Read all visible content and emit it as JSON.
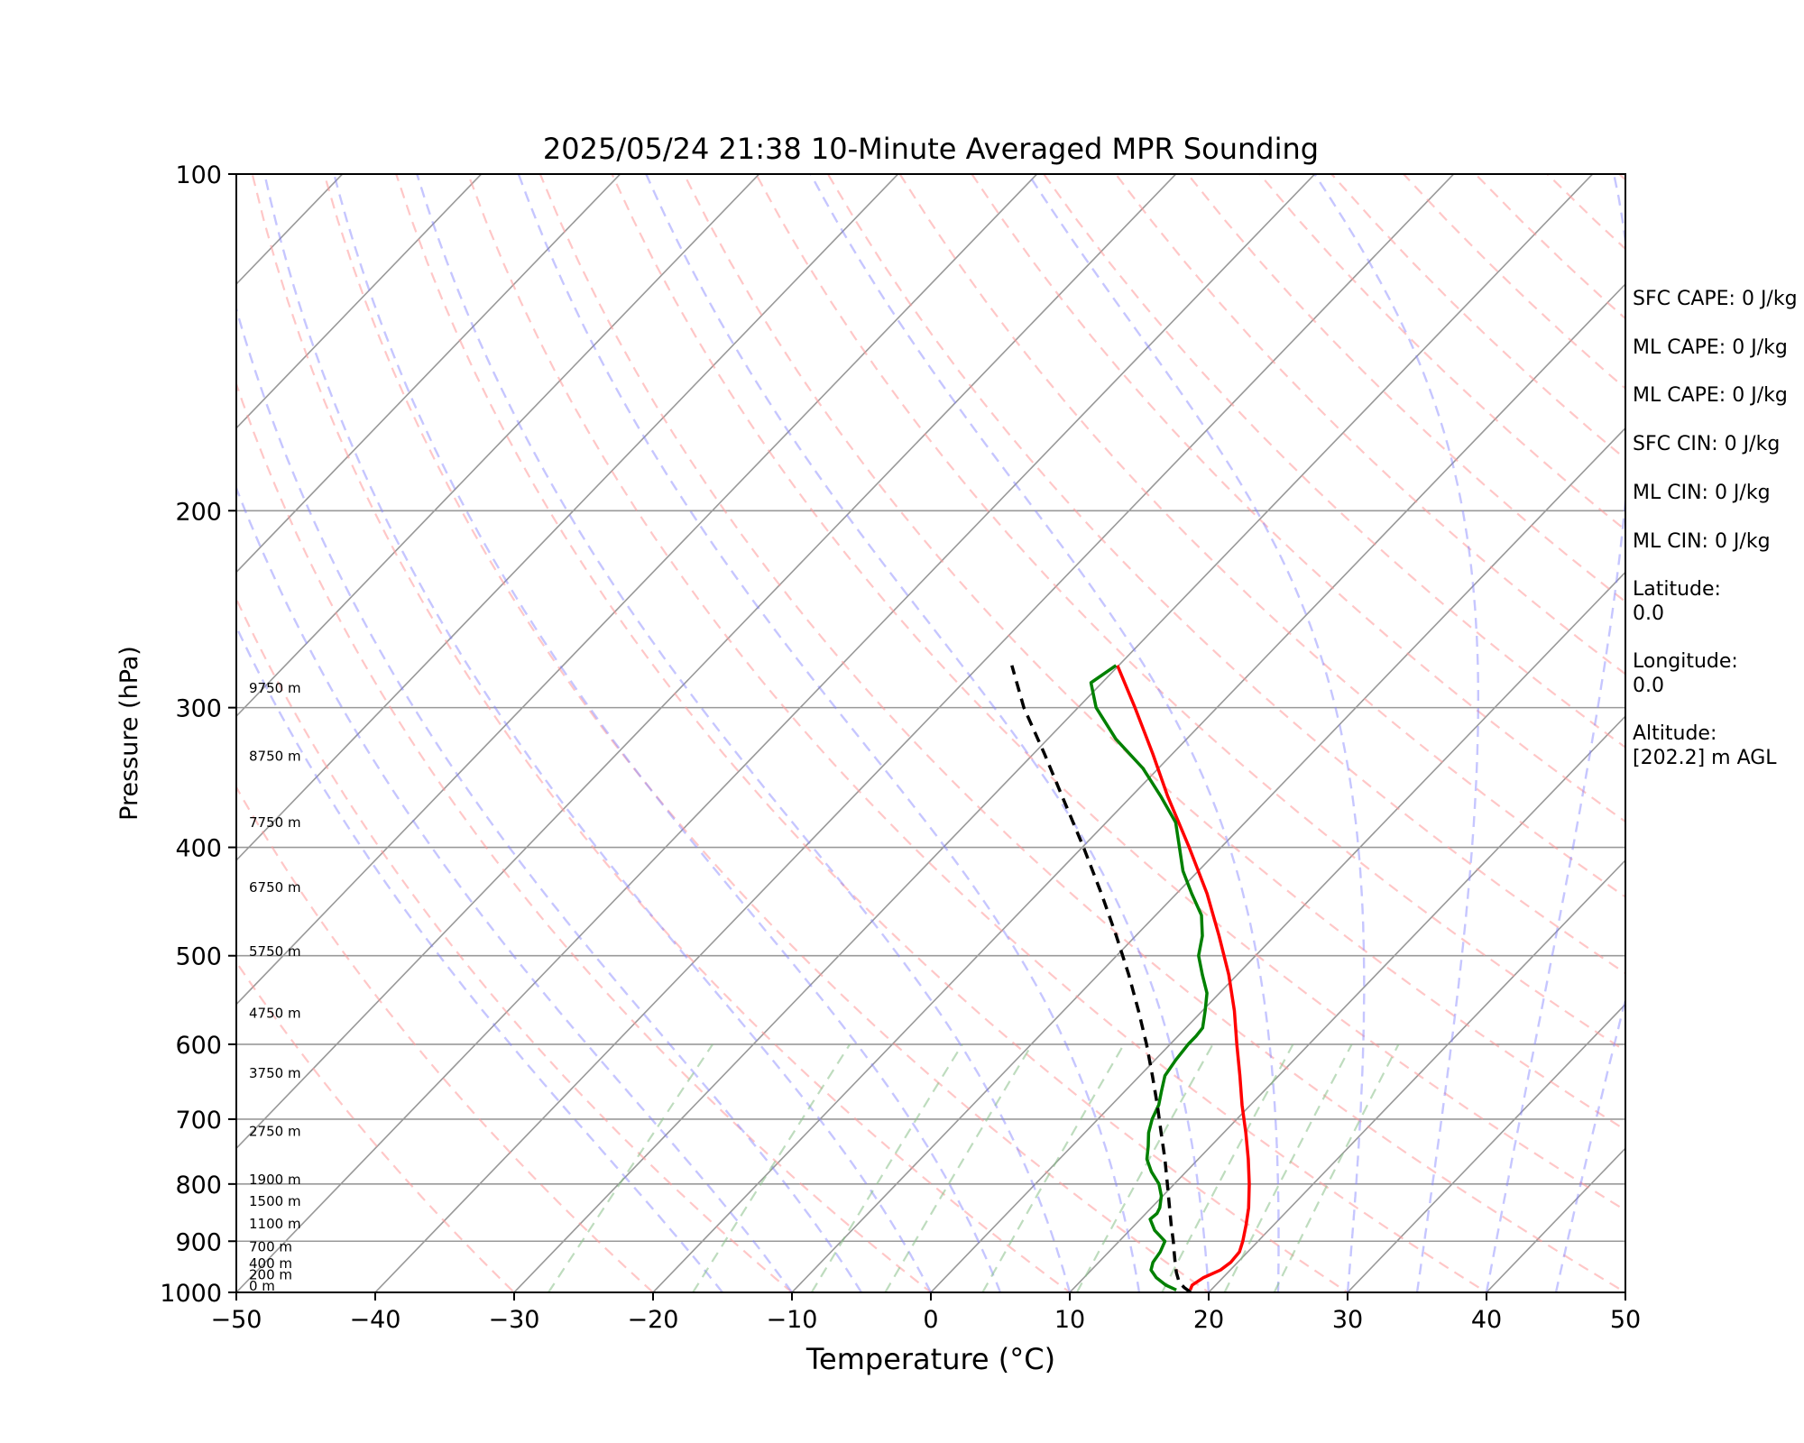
{
  "chart_data": {
    "type": "line",
    "title": "2025/05/24 21:38 10-Minute Averaged MPR Sounding",
    "xlabel": "Temperature (°C)",
    "ylabel": "Pressure (hPa)",
    "xlim": [
      -50,
      50
    ],
    "ylim": [
      1000,
      100
    ],
    "y_scale": "log",
    "skew": "skew-T (isotherms slanted)",
    "x_ticks": [
      "−50",
      "−40",
      "−30",
      "−20",
      "−10",
      "0",
      "10",
      "20",
      "30",
      "40",
      "50"
    ],
    "y_ticks": [
      100,
      200,
      300,
      400,
      500,
      600,
      700,
      800,
      900,
      1000
    ],
    "grid": true,
    "height_labels": [
      {
        "text": "0 m",
        "p": 1000
      },
      {
        "text": "200 m",
        "p": 977
      },
      {
        "text": "400 m",
        "p": 955
      },
      {
        "text": "700 m",
        "p": 922
      },
      {
        "text": "1100 m",
        "p": 880
      },
      {
        "text": "1500 m",
        "p": 840
      },
      {
        "text": "1900 m",
        "p": 803
      },
      {
        "text": "2750 m",
        "p": 727
      },
      {
        "text": "3750 m",
        "p": 645
      },
      {
        "text": "4750 m",
        "p": 570
      },
      {
        "text": "5750 m",
        "p": 502
      },
      {
        "text": "6750 m",
        "p": 440
      },
      {
        "text": "7750 m",
        "p": 385
      },
      {
        "text": "8750 m",
        "p": 336
      },
      {
        "text": "9750 m",
        "p": 292
      }
    ],
    "series": [
      {
        "role": "temperature",
        "color": "#ff0000",
        "points": [
          {
            "p": 995,
            "t": 18.5
          },
          {
            "p": 985,
            "t": 18.3
          },
          {
            "p": 970,
            "t": 18.6
          },
          {
            "p": 955,
            "t": 19.3
          },
          {
            "p": 940,
            "t": 19.5
          },
          {
            "p": 920,
            "t": 19.4
          },
          {
            "p": 900,
            "t": 18.9
          },
          {
            "p": 870,
            "t": 18.0
          },
          {
            "p": 840,
            "t": 17.0
          },
          {
            "p": 800,
            "t": 15.4
          },
          {
            "p": 760,
            "t": 13.6
          },
          {
            "p": 720,
            "t": 11.6
          },
          {
            "p": 680,
            "t": 9.4
          },
          {
            "p": 640,
            "t": 7.2
          },
          {
            "p": 600,
            "t": 4.8
          },
          {
            "p": 560,
            "t": 2.3
          },
          {
            "p": 520,
            "t": -0.6
          },
          {
            "p": 480,
            "t": -4.0
          },
          {
            "p": 440,
            "t": -7.8
          },
          {
            "p": 400,
            "t": -12.3
          },
          {
            "p": 360,
            "t": -17.4
          },
          {
            "p": 330,
            "t": -21.4
          },
          {
            "p": 300,
            "t": -25.9
          },
          {
            "p": 275,
            "t": -30.1
          }
        ]
      },
      {
        "role": "dewpoint",
        "color": "#008000",
        "points": [
          {
            "p": 995,
            "t": 17.5
          },
          {
            "p": 985,
            "t": 16.4
          },
          {
            "p": 970,
            "t": 15.2
          },
          {
            "p": 955,
            "t": 14.3
          },
          {
            "p": 940,
            "t": 13.9
          },
          {
            "p": 920,
            "t": 13.7
          },
          {
            "p": 900,
            "t": 13.3
          },
          {
            "p": 880,
            "t": 11.8
          },
          {
            "p": 860,
            "t": 10.7
          },
          {
            "p": 850,
            "t": 10.8
          },
          {
            "p": 840,
            "t": 10.6
          },
          {
            "p": 820,
            "t": 9.9
          },
          {
            "p": 800,
            "t": 8.9
          },
          {
            "p": 780,
            "t": 7.5
          },
          {
            "p": 760,
            "t": 6.3
          },
          {
            "p": 740,
            "t": 5.5
          },
          {
            "p": 720,
            "t": 4.6
          },
          {
            "p": 700,
            "t": 3.9
          },
          {
            "p": 680,
            "t": 3.4
          },
          {
            "p": 660,
            "t": 2.6
          },
          {
            "p": 640,
            "t": 1.8
          },
          {
            "p": 620,
            "t": 1.5
          },
          {
            "p": 600,
            "t": 1.3
          },
          {
            "p": 590,
            "t": 1.3
          },
          {
            "p": 580,
            "t": 1.2
          },
          {
            "p": 560,
            "t": 0.2
          },
          {
            "p": 540,
            "t": -0.9
          },
          {
            "p": 520,
            "t": -2.5
          },
          {
            "p": 500,
            "t": -4.1
          },
          {
            "p": 480,
            "t": -5.2
          },
          {
            "p": 460,
            "t": -6.7
          },
          {
            "p": 440,
            "t": -8.9
          },
          {
            "p": 420,
            "t": -11.1
          },
          {
            "p": 400,
            "t": -13.0
          },
          {
            "p": 380,
            "t": -15.0
          },
          {
            "p": 360,
            "t": -17.9
          },
          {
            "p": 340,
            "t": -21.1
          },
          {
            "p": 320,
            "t": -25.1
          },
          {
            "p": 300,
            "t": -28.7
          },
          {
            "p": 285,
            "t": -30.8
          },
          {
            "p": 275,
            "t": -30.2
          }
        ]
      },
      {
        "role": "parcel",
        "color": "#000000",
        "dashed": true,
        "points": [
          {
            "p": 1000,
            "t": 18.7
          },
          {
            "p": 990,
            "t": 17.9
          },
          {
            "p": 980,
            "t": 17.2
          },
          {
            "p": 960,
            "t": 16.3
          },
          {
            "p": 940,
            "t": 15.5
          },
          {
            "p": 920,
            "t": 14.7
          },
          {
            "p": 900,
            "t": 13.9
          },
          {
            "p": 870,
            "t": 12.6
          },
          {
            "p": 840,
            "t": 11.3
          },
          {
            "p": 800,
            "t": 9.5
          },
          {
            "p": 760,
            "t": 7.6
          },
          {
            "p": 720,
            "t": 5.5
          },
          {
            "p": 680,
            "t": 3.3
          },
          {
            "p": 640,
            "t": 0.9
          },
          {
            "p": 600,
            "t": -1.7
          },
          {
            "p": 560,
            "t": -4.6
          },
          {
            "p": 520,
            "t": -7.8
          },
          {
            "p": 480,
            "t": -11.4
          },
          {
            "p": 440,
            "t": -15.4
          },
          {
            "p": 400,
            "t": -19.9
          },
          {
            "p": 360,
            "t": -25.0
          },
          {
            "p": 330,
            "t": -29.2
          },
          {
            "p": 300,
            "t": -33.9
          },
          {
            "p": 275,
            "t": -37.7
          }
        ]
      }
    ],
    "reference_lines": {
      "dry_adiabats_color": "#ff9999",
      "moist_adiabats_color": "#8080ff",
      "mixing_ratio_color": "#88c088",
      "isotherm_color": "#999999"
    }
  },
  "info": {
    "sfc_cape": "SFC CAPE: 0 J/kg",
    "ml_cape_1": "ML CAPE: 0 J/kg",
    "ml_cape_2": "ML CAPE: 0 J/kg",
    "sfc_cin": "SFC CIN: 0 J/kg",
    "ml_cin_1": "ML CIN: 0 J/kg",
    "ml_cin_2": "ML CIN: 0 J/kg",
    "latitude": "Latitude:\n0.0",
    "longitude": "Longitude:\n0.0",
    "altitude": "Altitude:\n[202.2] m AGL"
  }
}
